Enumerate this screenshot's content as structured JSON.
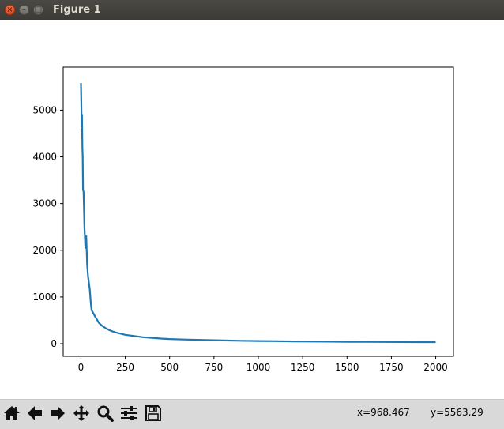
{
  "window": {
    "title": "Figure 1",
    "close_glyph": "×",
    "minimize_glyph": "–",
    "maximize_glyph": "□"
  },
  "toolbar": {
    "buttons": [
      {
        "name": "home-button",
        "icon": "home-icon"
      },
      {
        "name": "back-button",
        "icon": "arrow-left-icon"
      },
      {
        "name": "forward-button",
        "icon": "arrow-right-icon"
      },
      {
        "name": "pan-button",
        "icon": "move-icon"
      },
      {
        "name": "zoom-button",
        "icon": "magnifier-icon"
      },
      {
        "name": "configure-subplots-button",
        "icon": "sliders-icon"
      },
      {
        "name": "save-button",
        "icon": "floppy-disk-icon"
      }
    ],
    "coord_x": "x=968.467",
    "coord_y": "y=5563.29"
  },
  "chart_data": {
    "type": "line",
    "title": "",
    "xlabel": "",
    "ylabel": "",
    "xlim": [
      -100,
      2100
    ],
    "ylim": [
      -270,
      5920
    ],
    "xticks": [
      "0",
      "250",
      "500",
      "750",
      "1000",
      "1250",
      "1500",
      "1750",
      "2000"
    ],
    "yticks": [
      "0",
      "1000",
      "2000",
      "3000",
      "4000",
      "5000"
    ],
    "grid": false,
    "legend": "none",
    "color": "#1f77b4",
    "series": [
      {
        "x": [
          0,
          2,
          4,
          6,
          8,
          10,
          12,
          15,
          18,
          20,
          25,
          30,
          35,
          40,
          45,
          50,
          55,
          60,
          70,
          80,
          90,
          100,
          120,
          140,
          160,
          180,
          200,
          250,
          300,
          350,
          400,
          450,
          500,
          600,
          700,
          800,
          900,
          1000,
          1100,
          1200,
          1300,
          1400,
          1500,
          1600,
          1700,
          1800,
          1900,
          2000
        ],
        "y": [
          5580,
          5200,
          4650,
          4900,
          4200,
          4000,
          3300,
          3250,
          2800,
          2500,
          2050,
          2300,
          1700,
          1450,
          1300,
          1150,
          900,
          720,
          650,
          580,
          520,
          450,
          380,
          330,
          290,
          260,
          235,
          190,
          165,
          140,
          125,
          110,
          100,
          88,
          78,
          70,
          64,
          58,
          54,
          50,
          47,
          45,
          42,
          40,
          38,
          36,
          35,
          34
        ]
      }
    ]
  }
}
